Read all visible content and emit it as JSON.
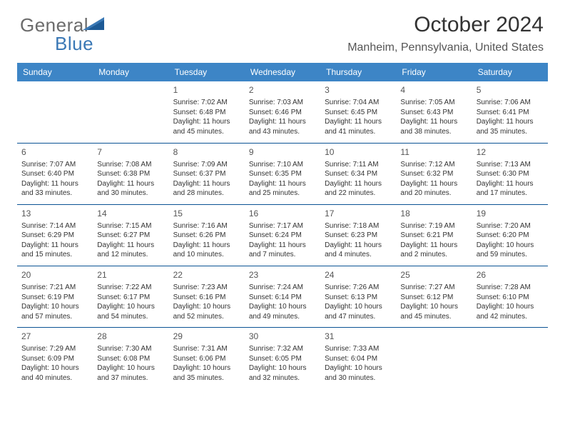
{
  "logo": {
    "general": "General",
    "blue": "Blue"
  },
  "header": {
    "month": "October 2024",
    "location": "Manheim, Pennsylvania, United States"
  },
  "colors": {
    "header_bg": "#3d85c6",
    "header_text": "#ffffff",
    "rule": "#0b5394",
    "logo_gray": "#6b6b6b",
    "logo_blue": "#3a78b5",
    "body_text": "#333333"
  },
  "dayNames": [
    "Sunday",
    "Monday",
    "Tuesday",
    "Wednesday",
    "Thursday",
    "Friday",
    "Saturday"
  ],
  "weeks": [
    [
      null,
      null,
      {
        "n": "1",
        "sr": "7:02 AM",
        "ss": "6:48 PM",
        "dlh": 11,
        "dlm": 45
      },
      {
        "n": "2",
        "sr": "7:03 AM",
        "ss": "6:46 PM",
        "dlh": 11,
        "dlm": 43
      },
      {
        "n": "3",
        "sr": "7:04 AM",
        "ss": "6:45 PM",
        "dlh": 11,
        "dlm": 41
      },
      {
        "n": "4",
        "sr": "7:05 AM",
        "ss": "6:43 PM",
        "dlh": 11,
        "dlm": 38
      },
      {
        "n": "5",
        "sr": "7:06 AM",
        "ss": "6:41 PM",
        "dlh": 11,
        "dlm": 35
      }
    ],
    [
      {
        "n": "6",
        "sr": "7:07 AM",
        "ss": "6:40 PM",
        "dlh": 11,
        "dlm": 33
      },
      {
        "n": "7",
        "sr": "7:08 AM",
        "ss": "6:38 PM",
        "dlh": 11,
        "dlm": 30
      },
      {
        "n": "8",
        "sr": "7:09 AM",
        "ss": "6:37 PM",
        "dlh": 11,
        "dlm": 28
      },
      {
        "n": "9",
        "sr": "7:10 AM",
        "ss": "6:35 PM",
        "dlh": 11,
        "dlm": 25
      },
      {
        "n": "10",
        "sr": "7:11 AM",
        "ss": "6:34 PM",
        "dlh": 11,
        "dlm": 22
      },
      {
        "n": "11",
        "sr": "7:12 AM",
        "ss": "6:32 PM",
        "dlh": 11,
        "dlm": 20
      },
      {
        "n": "12",
        "sr": "7:13 AM",
        "ss": "6:30 PM",
        "dlh": 11,
        "dlm": 17
      }
    ],
    [
      {
        "n": "13",
        "sr": "7:14 AM",
        "ss": "6:29 PM",
        "dlh": 11,
        "dlm": 15
      },
      {
        "n": "14",
        "sr": "7:15 AM",
        "ss": "6:27 PM",
        "dlh": 11,
        "dlm": 12
      },
      {
        "n": "15",
        "sr": "7:16 AM",
        "ss": "6:26 PM",
        "dlh": 11,
        "dlm": 10
      },
      {
        "n": "16",
        "sr": "7:17 AM",
        "ss": "6:24 PM",
        "dlh": 11,
        "dlm": 7
      },
      {
        "n": "17",
        "sr": "7:18 AM",
        "ss": "6:23 PM",
        "dlh": 11,
        "dlm": 4
      },
      {
        "n": "18",
        "sr": "7:19 AM",
        "ss": "6:21 PM",
        "dlh": 11,
        "dlm": 2
      },
      {
        "n": "19",
        "sr": "7:20 AM",
        "ss": "6:20 PM",
        "dlh": 10,
        "dlm": 59
      }
    ],
    [
      {
        "n": "20",
        "sr": "7:21 AM",
        "ss": "6:19 PM",
        "dlh": 10,
        "dlm": 57
      },
      {
        "n": "21",
        "sr": "7:22 AM",
        "ss": "6:17 PM",
        "dlh": 10,
        "dlm": 54
      },
      {
        "n": "22",
        "sr": "7:23 AM",
        "ss": "6:16 PM",
        "dlh": 10,
        "dlm": 52
      },
      {
        "n": "23",
        "sr": "7:24 AM",
        "ss": "6:14 PM",
        "dlh": 10,
        "dlm": 49
      },
      {
        "n": "24",
        "sr": "7:26 AM",
        "ss": "6:13 PM",
        "dlh": 10,
        "dlm": 47
      },
      {
        "n": "25",
        "sr": "7:27 AM",
        "ss": "6:12 PM",
        "dlh": 10,
        "dlm": 45
      },
      {
        "n": "26",
        "sr": "7:28 AM",
        "ss": "6:10 PM",
        "dlh": 10,
        "dlm": 42
      }
    ],
    [
      {
        "n": "27",
        "sr": "7:29 AM",
        "ss": "6:09 PM",
        "dlh": 10,
        "dlm": 40
      },
      {
        "n": "28",
        "sr": "7:30 AM",
        "ss": "6:08 PM",
        "dlh": 10,
        "dlm": 37
      },
      {
        "n": "29",
        "sr": "7:31 AM",
        "ss": "6:06 PM",
        "dlh": 10,
        "dlm": 35
      },
      {
        "n": "30",
        "sr": "7:32 AM",
        "ss": "6:05 PM",
        "dlh": 10,
        "dlm": 32
      },
      {
        "n": "31",
        "sr": "7:33 AM",
        "ss": "6:04 PM",
        "dlh": 10,
        "dlm": 30
      },
      null,
      null
    ]
  ]
}
